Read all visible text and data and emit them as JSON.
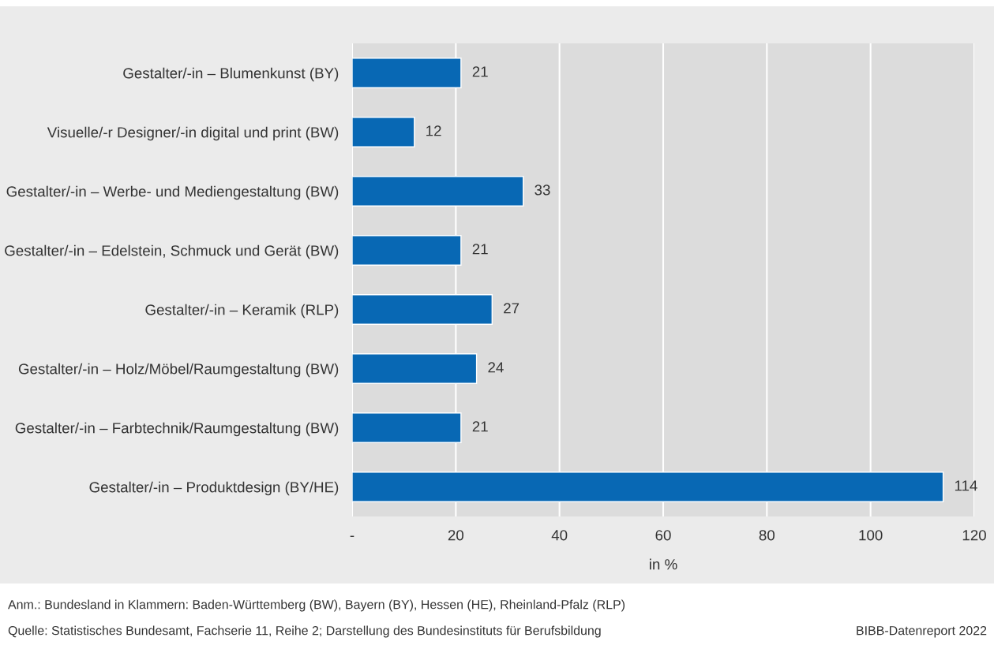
{
  "chart_data": {
    "type": "bar",
    "orientation": "horizontal",
    "categories": [
      "Gestalter/-in – Blumenkunst (BY)",
      "Visuelle/-r Designer/-in digital und print (BW)",
      "Gestalter/-in – Werbe- und Mediengestaltung (BW)",
      "Gestalter/-in – Edelstein, Schmuck und Gerät (BW)",
      "Gestalter/-in – Keramik (RLP)",
      "Gestalter/-in – Holz/Möbel/Raumgestaltung (BW)",
      "Gestalter/-in – Farbtechnik/Raumgestaltung (BW)",
      "Gestalter/-in – Produktdesign (BY/HE)"
    ],
    "values": [
      21,
      12,
      33,
      21,
      27,
      24,
      21,
      114
    ],
    "color": "#0868b4",
    "xlim": [
      0,
      120
    ],
    "xticks": [
      {
        "value": 0,
        "label": "-"
      },
      20,
      40,
      60,
      80,
      100,
      120
    ],
    "xlabel": "in %",
    "grid": "x",
    "data_labels": true,
    "annotations": [
      "Anm.: Bundesland in Klammern: Baden-Württemberg (BW), Bayern (BY), Hessen (HE), Rheinland-Pfalz (RLP)",
      "Quelle: Statistisches Bundesamt, Fachserie 11, Reihe 2; Darstellung des Bundesinstituts für Berufsbildung",
      "BIBB-Datenreport 2022"
    ]
  }
}
